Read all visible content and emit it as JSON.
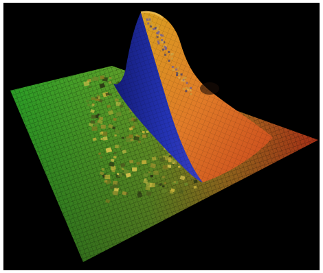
{
  "image": {
    "subject": "3d-surface-plot",
    "colors": {
      "background": "#000000",
      "plane_left": "#2fae2a",
      "plane_right": "#c8381a",
      "peak_front": "#1e2aa8",
      "peak_back": "#e08a2a"
    }
  }
}
